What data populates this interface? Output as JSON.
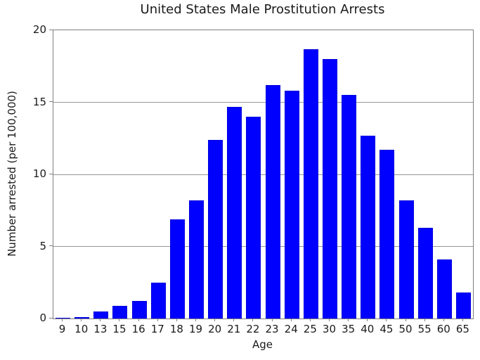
{
  "chart_data": {
    "type": "bar",
    "title": "United States Male Prostitution Arrests",
    "xlabel": "Age",
    "ylabel": "Number arrested (per 100,000)",
    "categories": [
      "9",
      "10",
      "13",
      "15",
      "16",
      "17",
      "18",
      "19",
      "20",
      "21",
      "22",
      "23",
      "24",
      "25",
      "30",
      "35",
      "40",
      "45",
      "50",
      "55",
      "60",
      "65"
    ],
    "values": [
      0.05,
      0.1,
      0.5,
      0.9,
      1.2,
      2.5,
      6.9,
      8.2,
      12.4,
      14.7,
      14.0,
      16.2,
      15.8,
      18.7,
      18.0,
      15.5,
      12.7,
      11.7,
      8.2,
      6.3,
      4.1,
      1.8
    ],
    "ylim": [
      0,
      20
    ],
    "yticks": [
      0,
      5,
      10,
      15,
      20
    ],
    "grid": "horizontal-only",
    "legend": "none",
    "bar_color": "#0000ff",
    "grid_color": "#969696",
    "spine_color": "#808080"
  }
}
